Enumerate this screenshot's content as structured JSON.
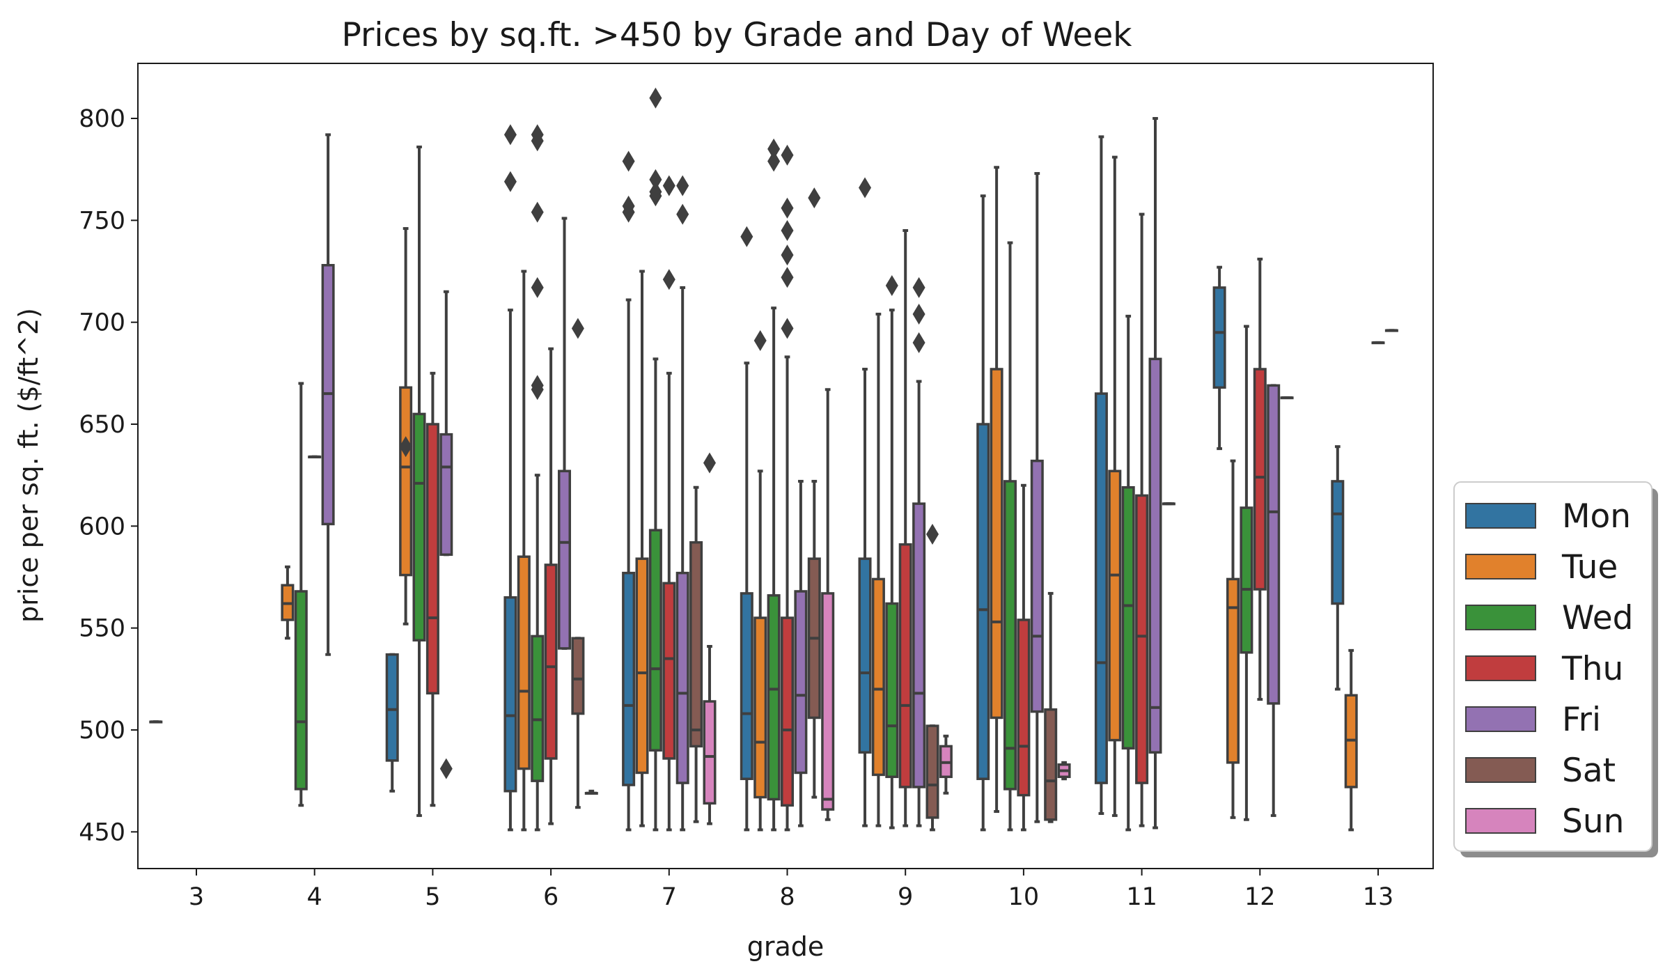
{
  "chart_data": {
    "type": "box",
    "title": "Prices by sq.ft. >450  by Grade and Day of Week",
    "xlabel": "grade",
    "ylabel": "price per sq. ft. ($/ft^2)",
    "ylim": [
      432,
      827
    ],
    "yticks": [
      450,
      500,
      550,
      600,
      650,
      700,
      750,
      800
    ],
    "categories": [
      "3",
      "4",
      "5",
      "6",
      "7",
      "8",
      "9",
      "10",
      "11",
      "12",
      "13"
    ],
    "grid": false,
    "legend_position": "right",
    "series": [
      {
        "name": "Mon",
        "color": "#3274a1",
        "boxes": [
          {
            "category": "3",
            "q1": 504,
            "median": 504,
            "q3": 504,
            "whisker_low": 504,
            "whisker_high": 504,
            "outliers": []
          },
          {
            "category": "5",
            "q1": 485,
            "median": 510,
            "q3": 537,
            "whisker_low": 470,
            "whisker_high": 537,
            "outliers": []
          },
          {
            "category": "6",
            "q1": 470,
            "median": 507,
            "q3": 565,
            "whisker_low": 451,
            "whisker_high": 706,
            "outliers": [
              769,
              792
            ]
          },
          {
            "category": "7",
            "q1": 473,
            "median": 512,
            "q3": 577,
            "whisker_low": 451,
            "whisker_high": 711,
            "outliers": [
              754,
              757,
              779
            ]
          },
          {
            "category": "8",
            "q1": 476,
            "median": 508,
            "q3": 567,
            "whisker_low": 451,
            "whisker_high": 680,
            "outliers": [
              742
            ]
          },
          {
            "category": "9",
            "q1": 489,
            "median": 528,
            "q3": 584,
            "whisker_low": 453,
            "whisker_high": 677,
            "outliers": [
              766
            ]
          },
          {
            "category": "10",
            "q1": 476,
            "median": 559,
            "q3": 650,
            "whisker_low": 451,
            "whisker_high": 762,
            "outliers": []
          },
          {
            "category": "11",
            "q1": 474,
            "median": 533,
            "q3": 665,
            "whisker_low": 459,
            "whisker_high": 791,
            "outliers": []
          },
          {
            "category": "12",
            "q1": 668,
            "median": 695,
            "q3": 717,
            "whisker_low": 638,
            "whisker_high": 727,
            "outliers": []
          },
          {
            "category": "13",
            "q1": 562,
            "median": 606,
            "q3": 622,
            "whisker_low": 520,
            "whisker_high": 639,
            "outliers": []
          }
        ]
      },
      {
        "name": "Tue",
        "color": "#e1812c",
        "boxes": [
          {
            "category": "4",
            "q1": 554,
            "median": 562,
            "q3": 571,
            "whisker_low": 545,
            "whisker_high": 580,
            "outliers": []
          },
          {
            "category": "5",
            "q1": 576,
            "median": 629,
            "q3": 668,
            "whisker_low": 552,
            "whisker_high": 746,
            "outliers": [
              639
            ]
          },
          {
            "category": "6",
            "q1": 481,
            "median": 519,
            "q3": 585,
            "whisker_low": 451,
            "whisker_high": 725,
            "outliers": []
          },
          {
            "category": "7",
            "q1": 479,
            "median": 528,
            "q3": 584,
            "whisker_low": 453,
            "whisker_high": 725,
            "outliers": []
          },
          {
            "category": "8",
            "q1": 467,
            "median": 494,
            "q3": 555,
            "whisker_low": 451,
            "whisker_high": 627,
            "outliers": [
              691
            ]
          },
          {
            "category": "9",
            "q1": 478,
            "median": 520,
            "q3": 574,
            "whisker_low": 453,
            "whisker_high": 704,
            "outliers": []
          },
          {
            "category": "10",
            "q1": 506,
            "median": 553,
            "q3": 677,
            "whisker_low": 460,
            "whisker_high": 776,
            "outliers": []
          },
          {
            "category": "11",
            "q1": 495,
            "median": 576,
            "q3": 627,
            "whisker_low": 458,
            "whisker_high": 781,
            "outliers": []
          },
          {
            "category": "12",
            "q1": 484,
            "median": 560,
            "q3": 574,
            "whisker_low": 457,
            "whisker_high": 632,
            "outliers": []
          },
          {
            "category": "13",
            "q1": 472,
            "median": 495,
            "q3": 517,
            "whisker_low": 451,
            "whisker_high": 539,
            "outliers": []
          }
        ]
      },
      {
        "name": "Wed",
        "color": "#3a923a",
        "boxes": [
          {
            "category": "4",
            "q1": 471,
            "median": 504,
            "q3": 568,
            "whisker_low": 463,
            "whisker_high": 670,
            "outliers": []
          },
          {
            "category": "5",
            "q1": 544,
            "median": 621,
            "q3": 655,
            "whisker_low": 458,
            "whisker_high": 786,
            "outliers": []
          },
          {
            "category": "6",
            "q1": 475,
            "median": 505,
            "q3": 546,
            "whisker_low": 451,
            "whisker_high": 625,
            "outliers": [
              667,
              669,
              717,
              754,
              789,
              792
            ]
          },
          {
            "category": "7",
            "q1": 490,
            "median": 530,
            "q3": 598,
            "whisker_low": 451,
            "whisker_high": 682,
            "outliers": [
              762,
              764,
              770,
              810
            ]
          },
          {
            "category": "8",
            "q1": 466,
            "median": 520,
            "q3": 566,
            "whisker_low": 451,
            "whisker_high": 707,
            "outliers": [
              779,
              785
            ]
          },
          {
            "category": "9",
            "q1": 477,
            "median": 502,
            "q3": 562,
            "whisker_low": 452,
            "whisker_high": 706,
            "outliers": [
              718
            ]
          },
          {
            "category": "10",
            "q1": 471,
            "median": 491,
            "q3": 622,
            "whisker_low": 451,
            "whisker_high": 739,
            "outliers": []
          },
          {
            "category": "11",
            "q1": 491,
            "median": 561,
            "q3": 619,
            "whisker_low": 451,
            "whisker_high": 703,
            "outliers": []
          },
          {
            "category": "12",
            "q1": 538,
            "median": 569,
            "q3": 609,
            "whisker_low": 456,
            "whisker_high": 698,
            "outliers": []
          }
        ]
      },
      {
        "name": "Thu",
        "color": "#c03d3e",
        "boxes": [
          {
            "category": "4",
            "q1": 634,
            "median": 634,
            "q3": 634,
            "whisker_low": 634,
            "whisker_high": 634,
            "outliers": []
          },
          {
            "category": "5",
            "q1": 518,
            "median": 555,
            "q3": 650,
            "whisker_low": 463,
            "whisker_high": 675,
            "outliers": []
          },
          {
            "category": "6",
            "q1": 486,
            "median": 531,
            "q3": 581,
            "whisker_low": 454,
            "whisker_high": 687,
            "outliers": []
          },
          {
            "category": "7",
            "q1": 486,
            "median": 535,
            "q3": 572,
            "whisker_low": 451,
            "whisker_high": 675,
            "outliers": [
              721,
              767
            ]
          },
          {
            "category": "8",
            "q1": 463,
            "median": 500,
            "q3": 555,
            "whisker_low": 451,
            "whisker_high": 683,
            "outliers": [
              697,
              722,
              733,
              745,
              756,
              782
            ]
          },
          {
            "category": "9",
            "q1": 472,
            "median": 512,
            "q3": 591,
            "whisker_low": 453,
            "whisker_high": 745,
            "outliers": []
          },
          {
            "category": "10",
            "q1": 468,
            "median": 492,
            "q3": 554,
            "whisker_low": 451,
            "whisker_high": 620,
            "outliers": []
          },
          {
            "category": "11",
            "q1": 474,
            "median": 546,
            "q3": 615,
            "whisker_low": 453,
            "whisker_high": 753,
            "outliers": []
          },
          {
            "category": "12",
            "q1": 569,
            "median": 624,
            "q3": 677,
            "whisker_low": 515,
            "whisker_high": 731,
            "outliers": []
          },
          {
            "category": "13",
            "q1": 690,
            "median": 690,
            "q3": 690,
            "whisker_low": 690,
            "whisker_high": 690,
            "outliers": []
          }
        ]
      },
      {
        "name": "Fri",
        "color": "#9372b2",
        "boxes": [
          {
            "category": "4",
            "q1": 601,
            "median": 665,
            "q3": 728,
            "whisker_low": 537,
            "whisker_high": 792,
            "outliers": []
          },
          {
            "category": "5",
            "q1": 586,
            "median": 629,
            "q3": 645,
            "whisker_low": 586,
            "whisker_high": 715,
            "outliers": [
              481
            ]
          },
          {
            "category": "6",
            "q1": 540,
            "median": 592,
            "q3": 627,
            "whisker_low": 540,
            "whisker_high": 751,
            "outliers": []
          },
          {
            "category": "7",
            "q1": 474,
            "median": 518,
            "q3": 577,
            "whisker_low": 451,
            "whisker_high": 717,
            "outliers": [
              753,
              767
            ]
          },
          {
            "category": "8",
            "q1": 479,
            "median": 517,
            "q3": 568,
            "whisker_low": 453,
            "whisker_high": 622,
            "outliers": []
          },
          {
            "category": "9",
            "q1": 472,
            "median": 518,
            "q3": 611,
            "whisker_low": 453,
            "whisker_high": 671,
            "outliers": [
              690,
              704,
              717
            ]
          },
          {
            "category": "10",
            "q1": 509,
            "median": 546,
            "q3": 632,
            "whisker_low": 455,
            "whisker_high": 773,
            "outliers": []
          },
          {
            "category": "11",
            "q1": 489,
            "median": 511,
            "q3": 682,
            "whisker_low": 452,
            "whisker_high": 800,
            "outliers": []
          },
          {
            "category": "12",
            "q1": 513,
            "median": 607,
            "q3": 669,
            "whisker_low": 458,
            "whisker_high": 669,
            "outliers": []
          },
          {
            "category": "13",
            "q1": 696,
            "median": 696,
            "q3": 696,
            "whisker_low": 696,
            "whisker_high": 696,
            "outliers": []
          }
        ]
      },
      {
        "name": "Sat",
        "color": "#845b53",
        "boxes": [
          {
            "category": "6",
            "q1": 508,
            "median": 525,
            "q3": 545,
            "whisker_low": 462,
            "whisker_high": 545,
            "outliers": [
              697
            ]
          },
          {
            "category": "7",
            "q1": 492,
            "median": 500,
            "q3": 592,
            "whisker_low": 455,
            "whisker_high": 619,
            "outliers": []
          },
          {
            "category": "8",
            "q1": 506,
            "median": 545,
            "q3": 584,
            "whisker_low": 467,
            "whisker_high": 622,
            "outliers": [
              761
            ]
          },
          {
            "category": "9",
            "q1": 457,
            "median": 473,
            "q3": 502,
            "whisker_low": 451,
            "whisker_high": 502,
            "outliers": [
              596
            ]
          },
          {
            "category": "10",
            "q1": 456,
            "median": 475,
            "q3": 510,
            "whisker_low": 455,
            "whisker_high": 567,
            "outliers": []
          },
          {
            "category": "11",
            "q1": 611,
            "median": 611,
            "q3": 611,
            "whisker_low": 611,
            "whisker_high": 611,
            "outliers": []
          },
          {
            "category": "12",
            "q1": 663,
            "median": 663,
            "q3": 663,
            "whisker_low": 663,
            "whisker_high": 663,
            "outliers": []
          }
        ]
      },
      {
        "name": "Sun",
        "color": "#d684bd",
        "boxes": [
          {
            "category": "6",
            "q1": 469,
            "median": 469,
            "q3": 469,
            "whisker_low": 469,
            "whisker_high": 470,
            "outliers": []
          },
          {
            "category": "7",
            "q1": 464,
            "median": 487,
            "q3": 514,
            "whisker_low": 454,
            "whisker_high": 541,
            "outliers": [
              631
            ]
          },
          {
            "category": "8",
            "q1": 461,
            "median": 466,
            "q3": 567,
            "whisker_low": 456,
            "whisker_high": 667,
            "outliers": []
          },
          {
            "category": "9",
            "q1": 477,
            "median": 484,
            "q3": 492,
            "whisker_low": 469,
            "whisker_high": 497,
            "outliers": []
          },
          {
            "category": "10",
            "q1": 477,
            "median": 480,
            "q3": 483,
            "whisker_low": 476,
            "whisker_high": 484,
            "outliers": []
          }
        ]
      }
    ]
  }
}
